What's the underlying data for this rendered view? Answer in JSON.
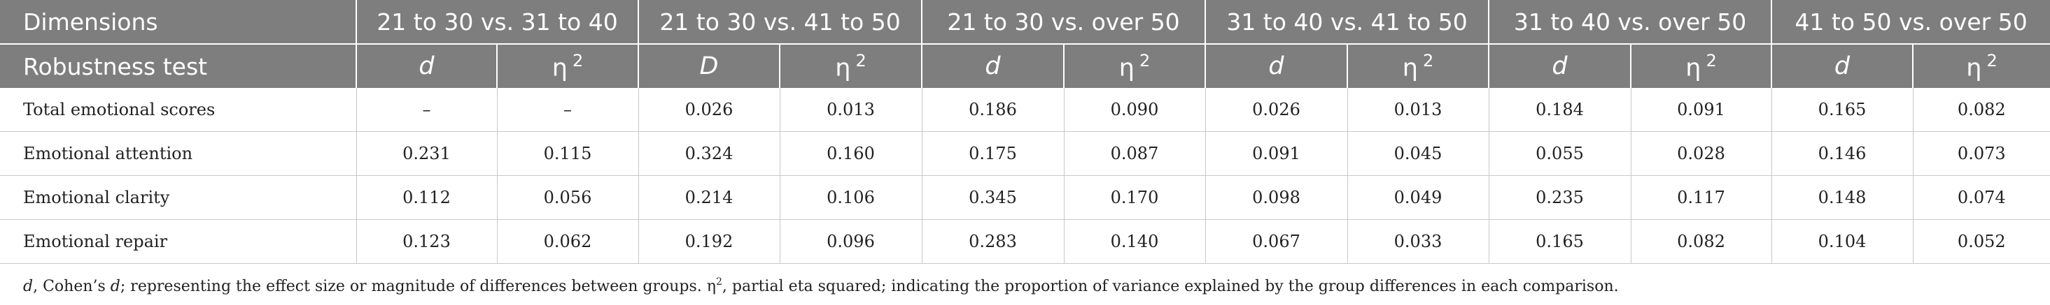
{
  "table": {
    "header": {
      "dimensions_label": "Dimensions",
      "robustness_label": "Robustness test",
      "groups": [
        "21 to 30 vs. 31 to 40",
        "21 to 30 vs. 41 to 50",
        "21 to 30 vs. over 50",
        "31 to 40 vs. 41 to 50",
        "31 to 40 vs. over 50",
        "41 to 50 vs. over 50"
      ],
      "subheaders": [
        {
          "symbol": "d",
          "sup": ""
        },
        {
          "symbol": "η",
          "sup": "2"
        },
        {
          "symbol": "D",
          "sup": ""
        },
        {
          "symbol": "η",
          "sup": "2"
        },
        {
          "symbol": "d",
          "sup": ""
        },
        {
          "symbol": "η",
          "sup": "2"
        },
        {
          "symbol": "d",
          "sup": ""
        },
        {
          "symbol": "η",
          "sup": "2"
        },
        {
          "symbol": "d",
          "sup": ""
        },
        {
          "symbol": "η",
          "sup": "2"
        },
        {
          "symbol": "d",
          "sup": ""
        },
        {
          "symbol": "η",
          "sup": "2"
        }
      ]
    },
    "rows": [
      {
        "label": "Total emotional scores",
        "values": [
          "–",
          "–",
          "0.026",
          "0.013",
          "0.186",
          "0.090",
          "0.026",
          "0.013",
          "0.184",
          "0.091",
          "0.165",
          "0.082"
        ]
      },
      {
        "label": "Emotional attention",
        "values": [
          "0.231",
          "0.115",
          "0.324",
          "0.160",
          "0.175",
          "0.087",
          "0.091",
          "0.045",
          "0.055",
          "0.028",
          "0.146",
          "0.073"
        ]
      },
      {
        "label": "Emotional clarity",
        "values": [
          "0.112",
          "0.056",
          "0.214",
          "0.106",
          "0.345",
          "0.170",
          "0.098",
          "0.049",
          "0.235",
          "0.117",
          "0.148",
          "0.074"
        ]
      },
      {
        "label": "Emotional repair",
        "values": [
          "0.123",
          "0.062",
          "0.192",
          "0.096",
          "0.283",
          "0.140",
          "0.067",
          "0.033",
          "0.165",
          "0.082",
          "0.104",
          "0.052"
        ]
      }
    ]
  },
  "footnote": {
    "d_symbol": "d",
    "part1": ", Cohen’s ",
    "d_symbol2": "d",
    "part2": "; representing the effect size or magnitude of differences between groups. η",
    "eta_sup": "2",
    "part3": ", partial eta squared; indicating the proportion of variance explained by the group differences in each comparison."
  }
}
